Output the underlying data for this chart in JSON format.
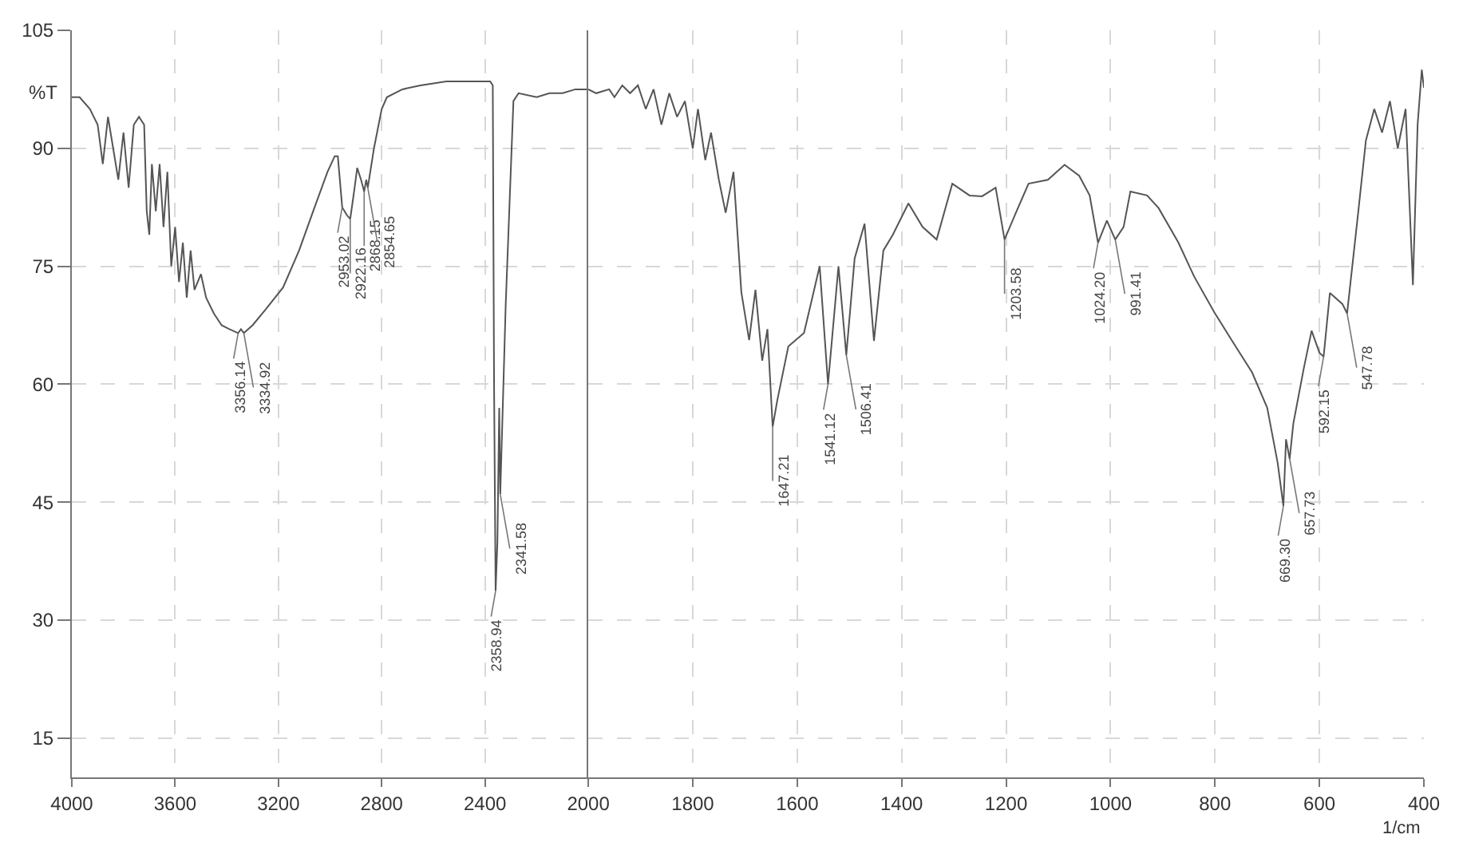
{
  "chart_data": [
    {
      "type": "line",
      "ylabel": "%T",
      "xlim": [
        4000,
        2000
      ],
      "xticks": [
        4000,
        3600,
        3200,
        2800,
        2400
      ],
      "ylim": [
        10,
        105
      ],
      "yticks": [
        15,
        30,
        45,
        60,
        75,
        90,
        105
      ],
      "grid": true,
      "series": [
        {
          "color": "#555555",
          "x": [
            4000,
            3970,
            3930,
            3900,
            3880,
            3860,
            3840,
            3820,
            3800,
            3780,
            3760,
            3740,
            3720,
            3710,
            3700,
            3690,
            3675,
            3660,
            3645,
            3630,
            3615,
            3600,
            3585,
            3570,
            3555,
            3540,
            3525,
            3500,
            3480,
            3450,
            3420,
            3390,
            3356,
            3345,
            3334,
            3300,
            3250,
            3182,
            3120,
            3061,
            3010,
            2982,
            2970,
            2953,
            2935,
            2922,
            2905,
            2895,
            2880,
            2868,
            2860,
            2854,
            2830,
            2800,
            2780,
            2720,
            2650,
            2550,
            2450,
            2380,
            2370,
            2365,
            2359,
            2352,
            2345,
            2341,
            2320,
            2290,
            2270,
            2200,
            2150,
            2100,
            2050,
            2000
          ],
          "values": [
            96.5,
            96.5,
            95,
            93,
            88,
            94,
            90,
            86,
            92,
            85,
            93,
            94,
            93,
            82,
            79,
            88,
            82,
            88,
            80,
            87,
            75,
            80,
            73,
            78,
            71,
            77,
            72,
            74,
            71,
            69,
            67.5,
            67,
            66.5,
            67,
            66.5,
            67.5,
            69.5,
            72.3,
            77,
            82.4,
            87,
            89,
            89,
            82.5,
            81.5,
            81,
            85,
            87.5,
            86,
            84.5,
            86,
            85,
            90,
            95,
            96.5,
            97.5,
            98,
            98.5,
            98.5,
            98.5,
            98,
            60,
            33.7,
            40,
            57,
            46,
            70,
            96,
            97,
            96.5,
            97,
            97,
            97.5,
            97.5
          ]
        }
      ],
      "annotations": [
        {
          "text": "3356.14",
          "x": 3356,
          "y": 66.5
        },
        {
          "text": "3334.92",
          "x": 3334,
          "y": 66.5
        },
        {
          "text": "2953.02",
          "x": 2953,
          "y": 82.5
        },
        {
          "text": "2922.16",
          "x": 2922,
          "y": 81
        },
        {
          "text": "2868.15",
          "x": 2868,
          "y": 84.5
        },
        {
          "text": "2854.65",
          "x": 2854,
          "y": 85
        },
        {
          "text": "2358.94",
          "x": 2359,
          "y": 33.7
        },
        {
          "text": "2341.58",
          "x": 2341,
          "y": 46
        }
      ]
    },
    {
      "type": "line",
      "xlabel": "1/cm",
      "xlim": [
        2000,
        400
      ],
      "xticks": [
        2000,
        1800,
        1600,
        1400,
        1200,
        1000,
        800,
        600,
        400
      ],
      "ylim": [
        10,
        105
      ],
      "yticks": [
        15,
        30,
        45,
        60,
        75,
        90,
        105
      ],
      "grid": true,
      "tick_labels": "x",
      "series": [
        {
          "color": "#555555",
          "x": [
            2000,
            1985,
            1960,
            1950,
            1935,
            1920,
            1905,
            1890,
            1875,
            1860,
            1845,
            1830,
            1815,
            1800,
            1790,
            1776,
            1765,
            1750,
            1737,
            1722,
            1707,
            1692,
            1680,
            1667,
            1657,
            1647,
            1638,
            1617,
            1587,
            1557,
            1541,
            1521,
            1506,
            1490,
            1471,
            1453,
            1435,
            1417,
            1387,
            1360,
            1333,
            1303,
            1270,
            1246,
            1220,
            1203,
            1180,
            1157,
            1120,
            1088,
            1060,
            1040,
            1024,
            1007,
            991,
            975,
            962,
            930,
            908,
            870,
            840,
            800,
            768,
            729,
            700,
            680,
            669,
            664,
            657,
            650,
            630,
            615,
            600,
            592,
            580,
            556,
            547,
            526,
            511,
            495,
            480,
            465,
            450,
            435,
            421,
            412,
            404,
            400
          ],
          "values": [
            97.5,
            97,
            97.5,
            96.5,
            98,
            97,
            98,
            95,
            97.5,
            93,
            97,
            94,
            96,
            90,
            95,
            88.5,
            92,
            86,
            81.8,
            87,
            71.7,
            65.6,
            72,
            63,
            67,
            54.6,
            58,
            64.8,
            66.5,
            75,
            60,
            75,
            63.7,
            76,
            80.4,
            65.5,
            77,
            79,
            83,
            80,
            78.4,
            85.5,
            84,
            83.9,
            85,
            78.4,
            82,
            85.5,
            86,
            87.9,
            86.5,
            84,
            78,
            80.8,
            78.4,
            80,
            84.5,
            84,
            82.4,
            78,
            73.7,
            69,
            65.6,
            61.5,
            57,
            50,
            44.5,
            53,
            50.5,
            55,
            62,
            66.8,
            64,
            63.5,
            71.6,
            70.2,
            69,
            81.7,
            91,
            95,
            92,
            96,
            90,
            95,
            72.6,
            93,
            100,
            97.7
          ]
        }
      ],
      "annotations": [
        {
          "text": "1647.21",
          "x": 1647,
          "y": 54.6
        },
        {
          "text": "1541.12",
          "x": 1541,
          "y": 60
        },
        {
          "text": "1506.41",
          "x": 1506,
          "y": 63.7
        },
        {
          "text": "1203.58",
          "x": 1203,
          "y": 78.4
        },
        {
          "text": "1024.20",
          "x": 1024,
          "y": 78
        },
        {
          "text": "991.41",
          "x": 991,
          "y": 78.4
        },
        {
          "text": "669.30",
          "x": 669,
          "y": 44.5
        },
        {
          "text": "657.73",
          "x": 657,
          "y": 50.5
        },
        {
          "text": "592.15",
          "x": 592,
          "y": 63.5
        },
        {
          "text": "547.78",
          "x": 547,
          "y": 69
        }
      ]
    }
  ]
}
